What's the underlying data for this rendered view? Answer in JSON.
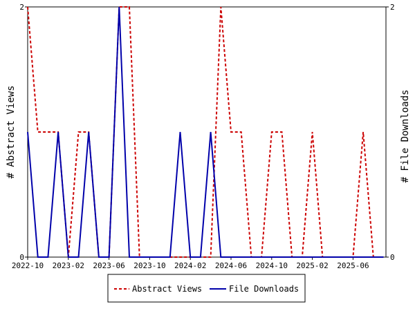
{
  "chart_data": {
    "type": "line",
    "x": [
      "2022-10",
      "2022-11",
      "2022-12",
      "2023-01",
      "2023-02",
      "2023-03",
      "2023-04",
      "2023-05",
      "2023-06",
      "2023-07",
      "2023-08",
      "2023-09",
      "2023-10",
      "2023-11",
      "2023-12",
      "2024-01",
      "2024-02",
      "2024-03",
      "2024-04",
      "2024-05",
      "2024-06",
      "2024-07",
      "2024-08",
      "2024-09",
      "2024-10",
      "2024-11",
      "2024-12",
      "2025-01",
      "2025-02",
      "2025-03",
      "2025-04",
      "2025-05",
      "2025-06",
      "2025-07",
      "2025-08",
      "2025-09"
    ],
    "x_tick_labels": [
      "2022-10",
      "2023-02",
      "2023-06",
      "2023-10",
      "2024-02",
      "2024-06",
      "2024-10",
      "2025-02",
      "2025-06"
    ],
    "series": [
      {
        "name": "Abstract Views",
        "axis": "left",
        "color": "#cc0000",
        "style": "dashed",
        "values": [
          2,
          1,
          1,
          1,
          0,
          1,
          1,
          0,
          0,
          2,
          2,
          0,
          0,
          0,
          0,
          0,
          0,
          0,
          0,
          2,
          1,
          1,
          0,
          0,
          1,
          1,
          0,
          0,
          1,
          0,
          0,
          0,
          0,
          1,
          0,
          0
        ]
      },
      {
        "name": "File Downloads",
        "axis": "right",
        "color": "#0000aa",
        "style": "solid",
        "values": [
          1,
          0,
          0,
          1,
          0,
          0,
          1,
          0,
          0,
          2,
          0,
          0,
          0,
          0,
          0,
          1,
          0,
          0,
          1,
          0,
          0,
          0,
          0,
          0,
          0,
          0,
          0,
          0,
          0,
          0,
          0,
          0,
          0,
          0,
          0,
          0
        ]
      }
    ],
    "ylabel_left": "# Abstract Views",
    "ylabel_right": "# File Downloads",
    "ylim": [
      0,
      2
    ],
    "y_ticks": [
      "0",
      "2"
    ],
    "grid": false,
    "legend_position": "bottom-center"
  }
}
